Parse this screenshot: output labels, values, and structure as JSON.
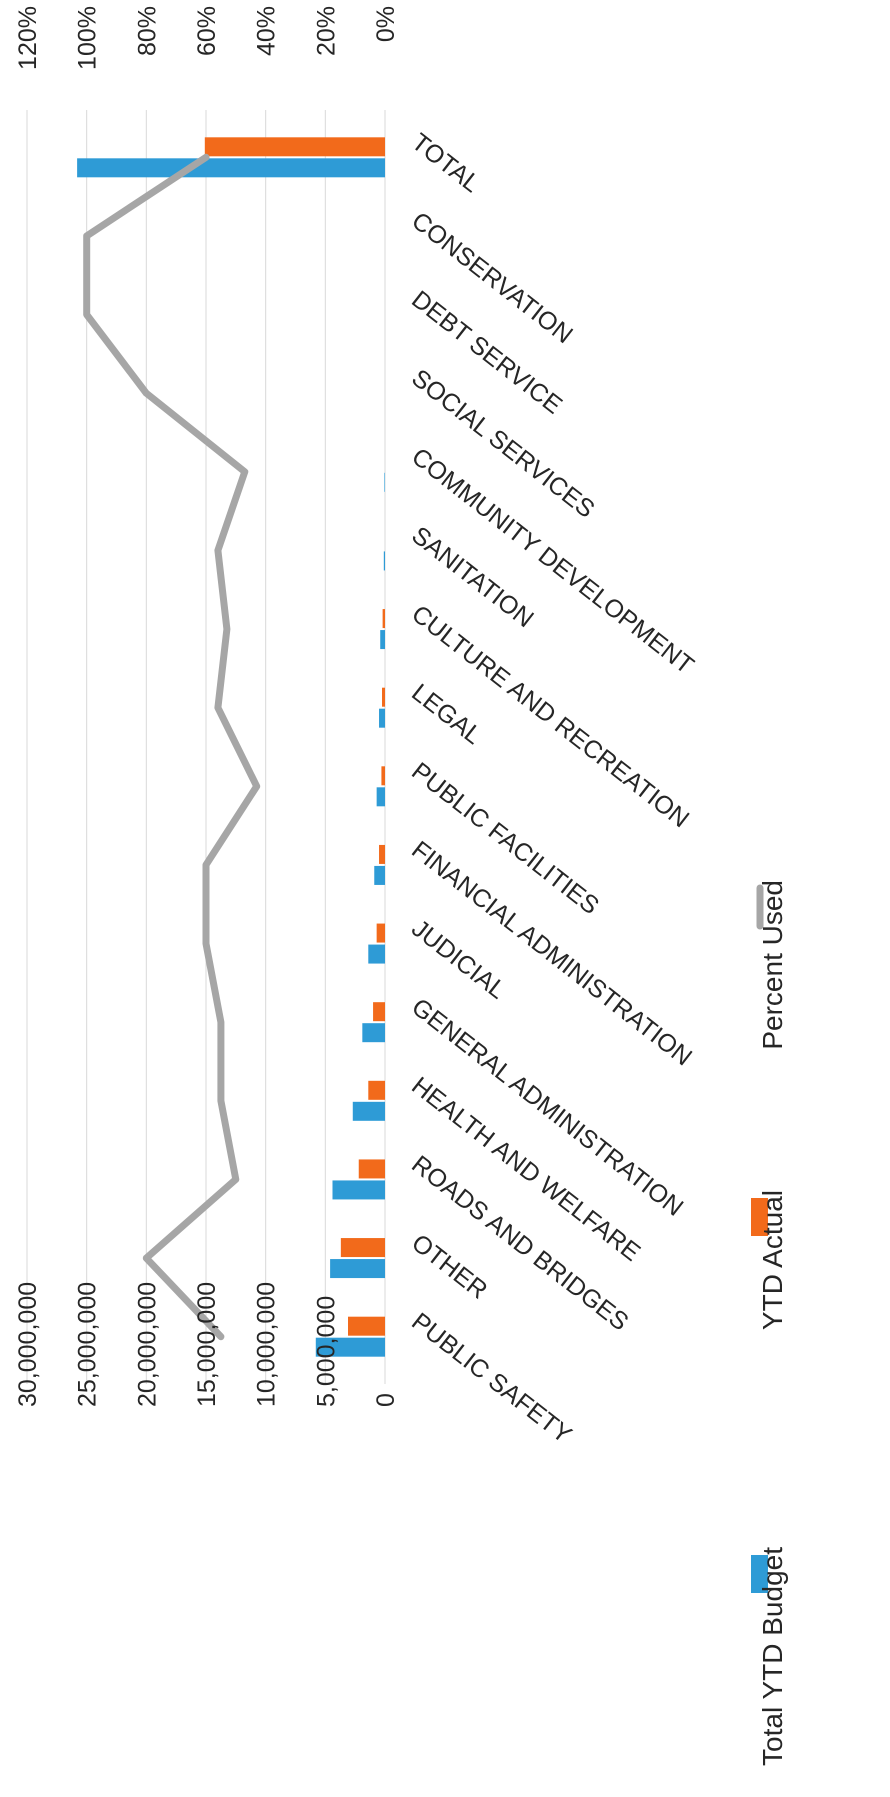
{
  "chart_data": {
    "type": "bar",
    "categories": [
      "PUBLIC SAFETY",
      "OTHER",
      "ROADS AND BRIDGES",
      "HEALTH AND WELFARE",
      "GENERAL ADMINISTRATION",
      "JUDICIAL",
      "FINANCIAL ADMINISTRATION",
      "PUBLIC FACILITIES",
      "LEGAL",
      "CULTURE AND RECREATION",
      "SANITATION",
      "COMMUNITY DEVELOPMENT",
      "SOCIAL SERVICES",
      "DEBT SERVICE",
      "CONSERVATION",
      "TOTAL"
    ],
    "series": [
      {
        "name": "Total YTD Budget",
        "kind": "bar",
        "axis": "primary",
        "color": "#2E9BD6",
        "values": [
          5800000,
          4600000,
          4400000,
          2700000,
          1900000,
          1400000,
          900000,
          700000,
          500000,
          400000,
          100000,
          50000,
          0,
          0,
          0,
          25800000
        ]
      },
      {
        "name": "YTD Actual",
        "kind": "bar",
        "axis": "primary",
        "color": "#F26A1B",
        "values": [
          3100000,
          3700000,
          2200000,
          1400000,
          1000000,
          700000,
          500000,
          300000,
          250000,
          200000,
          0,
          0,
          0,
          0,
          0,
          15100000
        ]
      },
      {
        "name": "Percent Used",
        "kind": "line",
        "axis": "secondary",
        "color": "#A6A6A6",
        "values": [
          0.55,
          0.8,
          0.5,
          0.55,
          0.55,
          0.6,
          0.6,
          0.43,
          0.56,
          0.53,
          0.56,
          0.47,
          0.8,
          1.0,
          1.0,
          0.6
        ]
      }
    ],
    "y_axis": {
      "ticks": [
        "0",
        "5,000,000",
        "10,000,000",
        "15,000,000",
        "20,000,000",
        "25,000,000",
        "30,000,000"
      ],
      "range": [
        0,
        30000000
      ]
    },
    "y2_axis": {
      "ticks": [
        "0%",
        "20%",
        "40%",
        "60%",
        "80%",
        "100%",
        "120%"
      ],
      "range": [
        0,
        1.2
      ]
    },
    "grid": true,
    "legend_position": "bottom"
  }
}
